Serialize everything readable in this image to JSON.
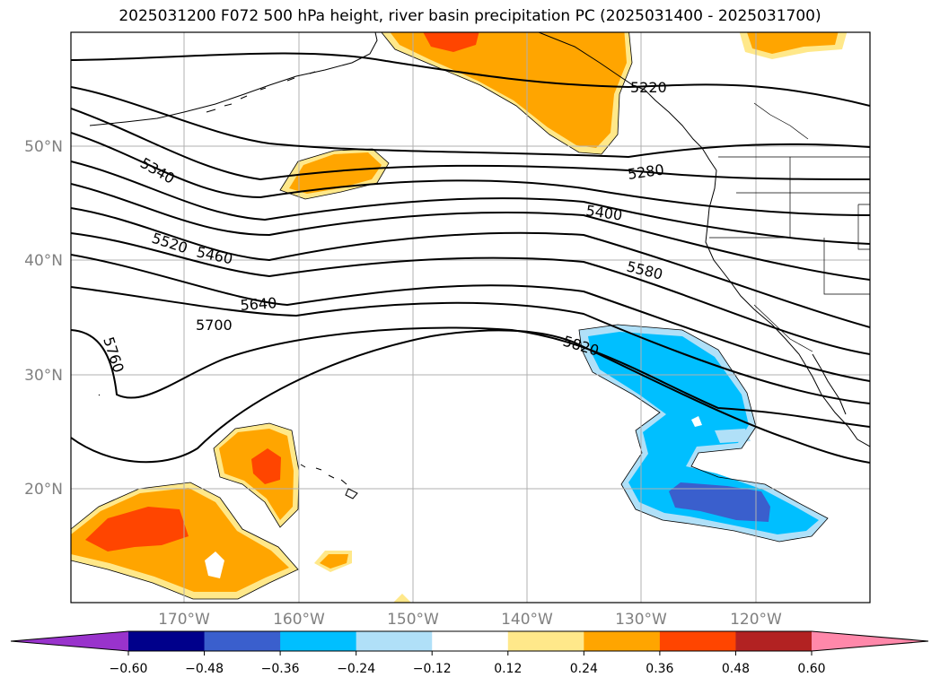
{
  "title": "2025031200 F072 500 hPa height, river basin precipitation PC (2025031400 - 2025031700)",
  "lat_labels": [
    "50°N",
    "40°N",
    "30°N",
    "20°N"
  ],
  "lon_labels": [
    "170°W",
    "160°W",
    "150°W",
    "140°W",
    "130°W",
    "120°W"
  ],
  "contour_labels": [
    "5220",
    "5280",
    "5340",
    "5400",
    "5460",
    "5520",
    "5580",
    "5640",
    "5700",
    "5760",
    "5820"
  ],
  "colorbar": {
    "tick_labels": [
      "−0.60",
      "−0.48",
      "−0.36",
      "−0.24",
      "−0.12",
      "0.12",
      "0.24",
      "0.36",
      "0.48",
      "0.60"
    ],
    "colors": [
      "#9933cc",
      "#00008b",
      "#3a5fcd",
      "#00bfff",
      "#b0e0f8",
      "#ffffff",
      "#ffe88a",
      "#ffa500",
      "#ff4500",
      "#b22222",
      "#ff88aa"
    ]
  },
  "colors": {
    "positive_low": "#ffe88a",
    "positive_mid": "#ffa500",
    "positive_high": "#ff4500",
    "negative_low": "#b0e0f8",
    "negative_mid": "#00bfff",
    "negative_high": "#3a5fcd"
  }
}
